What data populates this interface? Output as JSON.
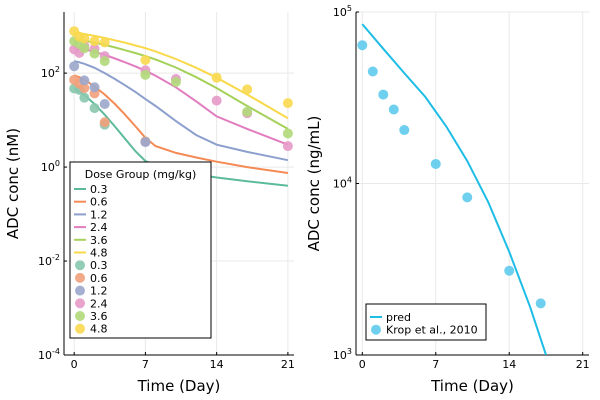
{
  "chart_data": [
    {
      "type": "scatter",
      "title": "",
      "xlabel": "Time (Day)",
      "ylabel": "ADC conc (nM)",
      "yscale": "log",
      "xlim": [
        -1,
        21.6
      ],
      "ylim": [
        0.0001,
        2000
      ],
      "x_ticks": [
        0,
        7,
        14,
        21
      ],
      "x_tick_labels": [
        "0",
        "7",
        "14",
        "21"
      ],
      "y_ticks": [
        0.0001,
        0.01,
        1,
        100
      ],
      "y_tick_labels": [
        {
          "base": "10",
          "exp": "-4"
        },
        {
          "base": "10",
          "exp": "-2"
        },
        {
          "base": "10",
          "exp": "0"
        },
        {
          "base": "10",
          "exp": "2"
        }
      ],
      "grid": true,
      "legend_placement": "bottom-left",
      "legend_title": "Dose Group (mg/kg)",
      "line_series": [
        {
          "name": "0.3",
          "color": "#5dbb9c",
          "x": [
            0,
            0.5,
            1,
            2,
            3,
            4,
            5,
            6,
            7,
            8,
            10,
            12,
            14,
            17,
            21
          ],
          "values": [
            45,
            40,
            34,
            22,
            13,
            7.3,
            4.0,
            2.2,
            1.35,
            1.08,
            0.85,
            0.7,
            0.6,
            0.5,
            0.4
          ]
        },
        {
          "name": "0.6",
          "color": "#f58a55",
          "x": [
            0,
            0.5,
            1,
            2,
            3,
            4,
            5,
            6,
            7,
            8,
            10,
            12,
            14,
            17,
            21
          ],
          "values": [
            90,
            82,
            72,
            52,
            35,
            22,
            13,
            7.5,
            4.2,
            2.8,
            2.0,
            1.6,
            1.3,
            1.0,
            0.75
          ]
        },
        {
          "name": "1.2",
          "color": "#8c9fcd",
          "x": [
            0,
            0.5,
            1,
            2,
            3,
            4,
            5,
            6,
            7,
            8,
            10,
            12,
            14,
            17,
            21
          ],
          "values": [
            180,
            170,
            158,
            130,
            100,
            75,
            55,
            40,
            28,
            20,
            9.5,
            4.8,
            3.0,
            2.1,
            1.4
          ]
        },
        {
          "name": "2.4",
          "color": "#e17cbf",
          "x": [
            0,
            0.5,
            1,
            2,
            3,
            4,
            5,
            6,
            7,
            8,
            10,
            12,
            14,
            17,
            21
          ],
          "values": [
            350,
            338,
            322,
            285,
            245,
            205,
            170,
            140,
            112,
            88,
            50,
            25,
            12,
            6.5,
            3.0
          ]
        },
        {
          "name": "3.6",
          "color": "#a5d15a",
          "x": [
            0,
            0.5,
            1,
            2,
            3,
            4,
            5,
            6,
            7,
            8,
            10,
            12,
            14,
            17,
            21
          ],
          "values": [
            520,
            505,
            490,
            445,
            398,
            352,
            308,
            268,
            230,
            195,
            132,
            82,
            48,
            20,
            6.5
          ]
        },
        {
          "name": "4.8",
          "color": "#f9d94a",
          "x": [
            0,
            0.5,
            1,
            2,
            3,
            4,
            5,
            6,
            7,
            8,
            10,
            12,
            14,
            17,
            21
          ],
          "values": [
            720,
            700,
            680,
            620,
            560,
            500,
            445,
            390,
            340,
            290,
            200,
            130,
            80,
            35,
            11
          ]
        }
      ],
      "point_series": [
        {
          "name": "0.3",
          "color": "#8ac7ae",
          "x": [
            0,
            0.5,
            1,
            2,
            3,
            7
          ],
          "values": [
            47,
            44,
            30,
            18,
            8,
            3.5
          ]
        },
        {
          "name": "0.6",
          "color": "#f1a07a",
          "x": [
            0,
            0.5,
            1,
            2,
            3,
            7
          ],
          "values": [
            72,
            60,
            48,
            37,
            9,
            3.5
          ]
        },
        {
          "name": "1.2",
          "color": "#9ba7cc",
          "x": [
            0,
            1,
            2,
            3,
            7
          ],
          "values": [
            140,
            70,
            50,
            22,
            3.4
          ]
        },
        {
          "name": "2.4",
          "color": "#e59ac8",
          "x": [
            0,
            0.5,
            1,
            2,
            3,
            7,
            10,
            14,
            17,
            21
          ],
          "values": [
            320,
            270,
            380,
            330,
            230,
            115,
            75,
            26,
            14,
            2.8
          ]
        },
        {
          "name": "3.6",
          "color": "#b1d97a",
          "x": [
            0,
            0.5,
            1,
            2,
            3,
            7,
            10,
            17,
            21
          ],
          "values": [
            480,
            420,
            340,
            260,
            180,
            92,
            65,
            15,
            5.2
          ]
        },
        {
          "name": "4.8",
          "color": "#f8d84f",
          "x": [
            0,
            0.5,
            1,
            2,
            3,
            7,
            14,
            17,
            21
          ],
          "values": [
            780,
            600,
            550,
            480,
            450,
            190,
            80,
            45,
            23
          ]
        }
      ]
    },
    {
      "type": "scatter",
      "title": "",
      "xlabel": "Time (Day)",
      "ylabel": "ADC conc (ng/mL)",
      "yscale": "log",
      "xlim": [
        -0.6,
        21.6
      ],
      "ylim": [
        1000,
        100000
      ],
      "x_ticks": [
        0,
        7,
        14,
        21
      ],
      "x_tick_labels": [
        "0",
        "7",
        "14",
        "21"
      ],
      "y_ticks": [
        1000,
        10000,
        100000
      ],
      "y_tick_labels": [
        {
          "base": "10",
          "exp": "3"
        },
        {
          "base": "10",
          "exp": "4"
        },
        {
          "base": "10",
          "exp": "5"
        }
      ],
      "grid": true,
      "legend_placement": "bottom-left",
      "line_series": [
        {
          "name": "pred",
          "color": "#1ebde6",
          "x": [
            0,
            2,
            4,
            6,
            8,
            10,
            12,
            14,
            16,
            17.5
          ],
          "values": [
            85000,
            61000,
            44000,
            32000,
            21500,
            13500,
            7800,
            4000,
            1900,
            1000
          ]
        }
      ],
      "point_series": [
        {
          "name": "Krop et al., 2010",
          "color": "#5ecbec",
          "x": [
            0,
            1,
            2,
            3,
            4,
            7,
            10,
            14,
            17
          ],
          "values": [
            64000,
            45000,
            33000,
            27000,
            20500,
            13000,
            8300,
            3100,
            2000
          ]
        }
      ]
    }
  ]
}
